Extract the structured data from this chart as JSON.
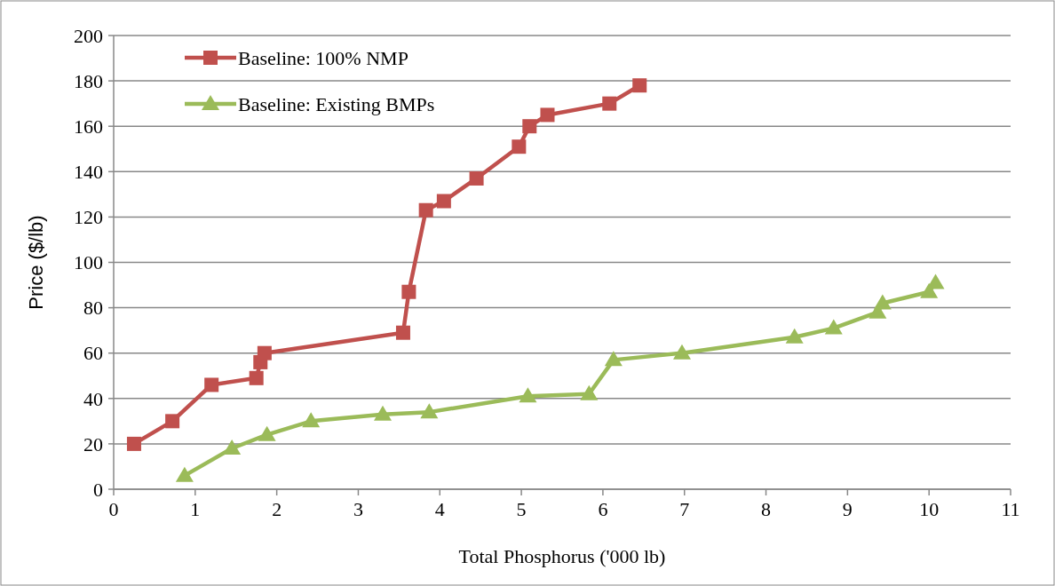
{
  "chart_data": {
    "type": "line",
    "xlabel": "Total Phosphorus ('000 lb)",
    "ylabel": "Price ($/lb)",
    "xlim": [
      0,
      11
    ],
    "xticks": [
      0,
      1,
      2,
      3,
      4,
      5,
      6,
      7,
      8,
      9,
      10,
      11
    ],
    "ylim": [
      0,
      200
    ],
    "yticks": [
      0,
      20,
      40,
      60,
      80,
      100,
      120,
      140,
      160,
      180,
      200
    ],
    "grid": "y",
    "legend": "top left",
    "series": [
      {
        "name": "Baseline: 100% NMP",
        "color": "#c0504d",
        "marker": "square",
        "x": [
          0.25,
          0.72,
          1.2,
          1.75,
          1.8,
          1.85,
          3.55,
          3.62,
          3.83,
          4.05,
          4.45,
          4.97,
          5.1,
          5.32,
          6.08,
          6.45
        ],
        "values": [
          20,
          30,
          46,
          49,
          56,
          60,
          69,
          87,
          123,
          127,
          137,
          151,
          160,
          165,
          170,
          178
        ]
      },
      {
        "name": "Baseline: Existing BMPs",
        "color": "#9bbb59",
        "marker": "triangle",
        "x": [
          0.87,
          1.45,
          1.88,
          2.42,
          3.3,
          3.87,
          5.08,
          5.83,
          6.13,
          6.97,
          8.35,
          8.83,
          9.37,
          9.43,
          10.0,
          10.08
        ],
        "values": [
          6,
          18,
          24,
          30,
          33,
          34,
          41,
          42,
          57,
          60,
          67,
          71,
          78,
          82,
          87,
          91
        ]
      }
    ]
  }
}
